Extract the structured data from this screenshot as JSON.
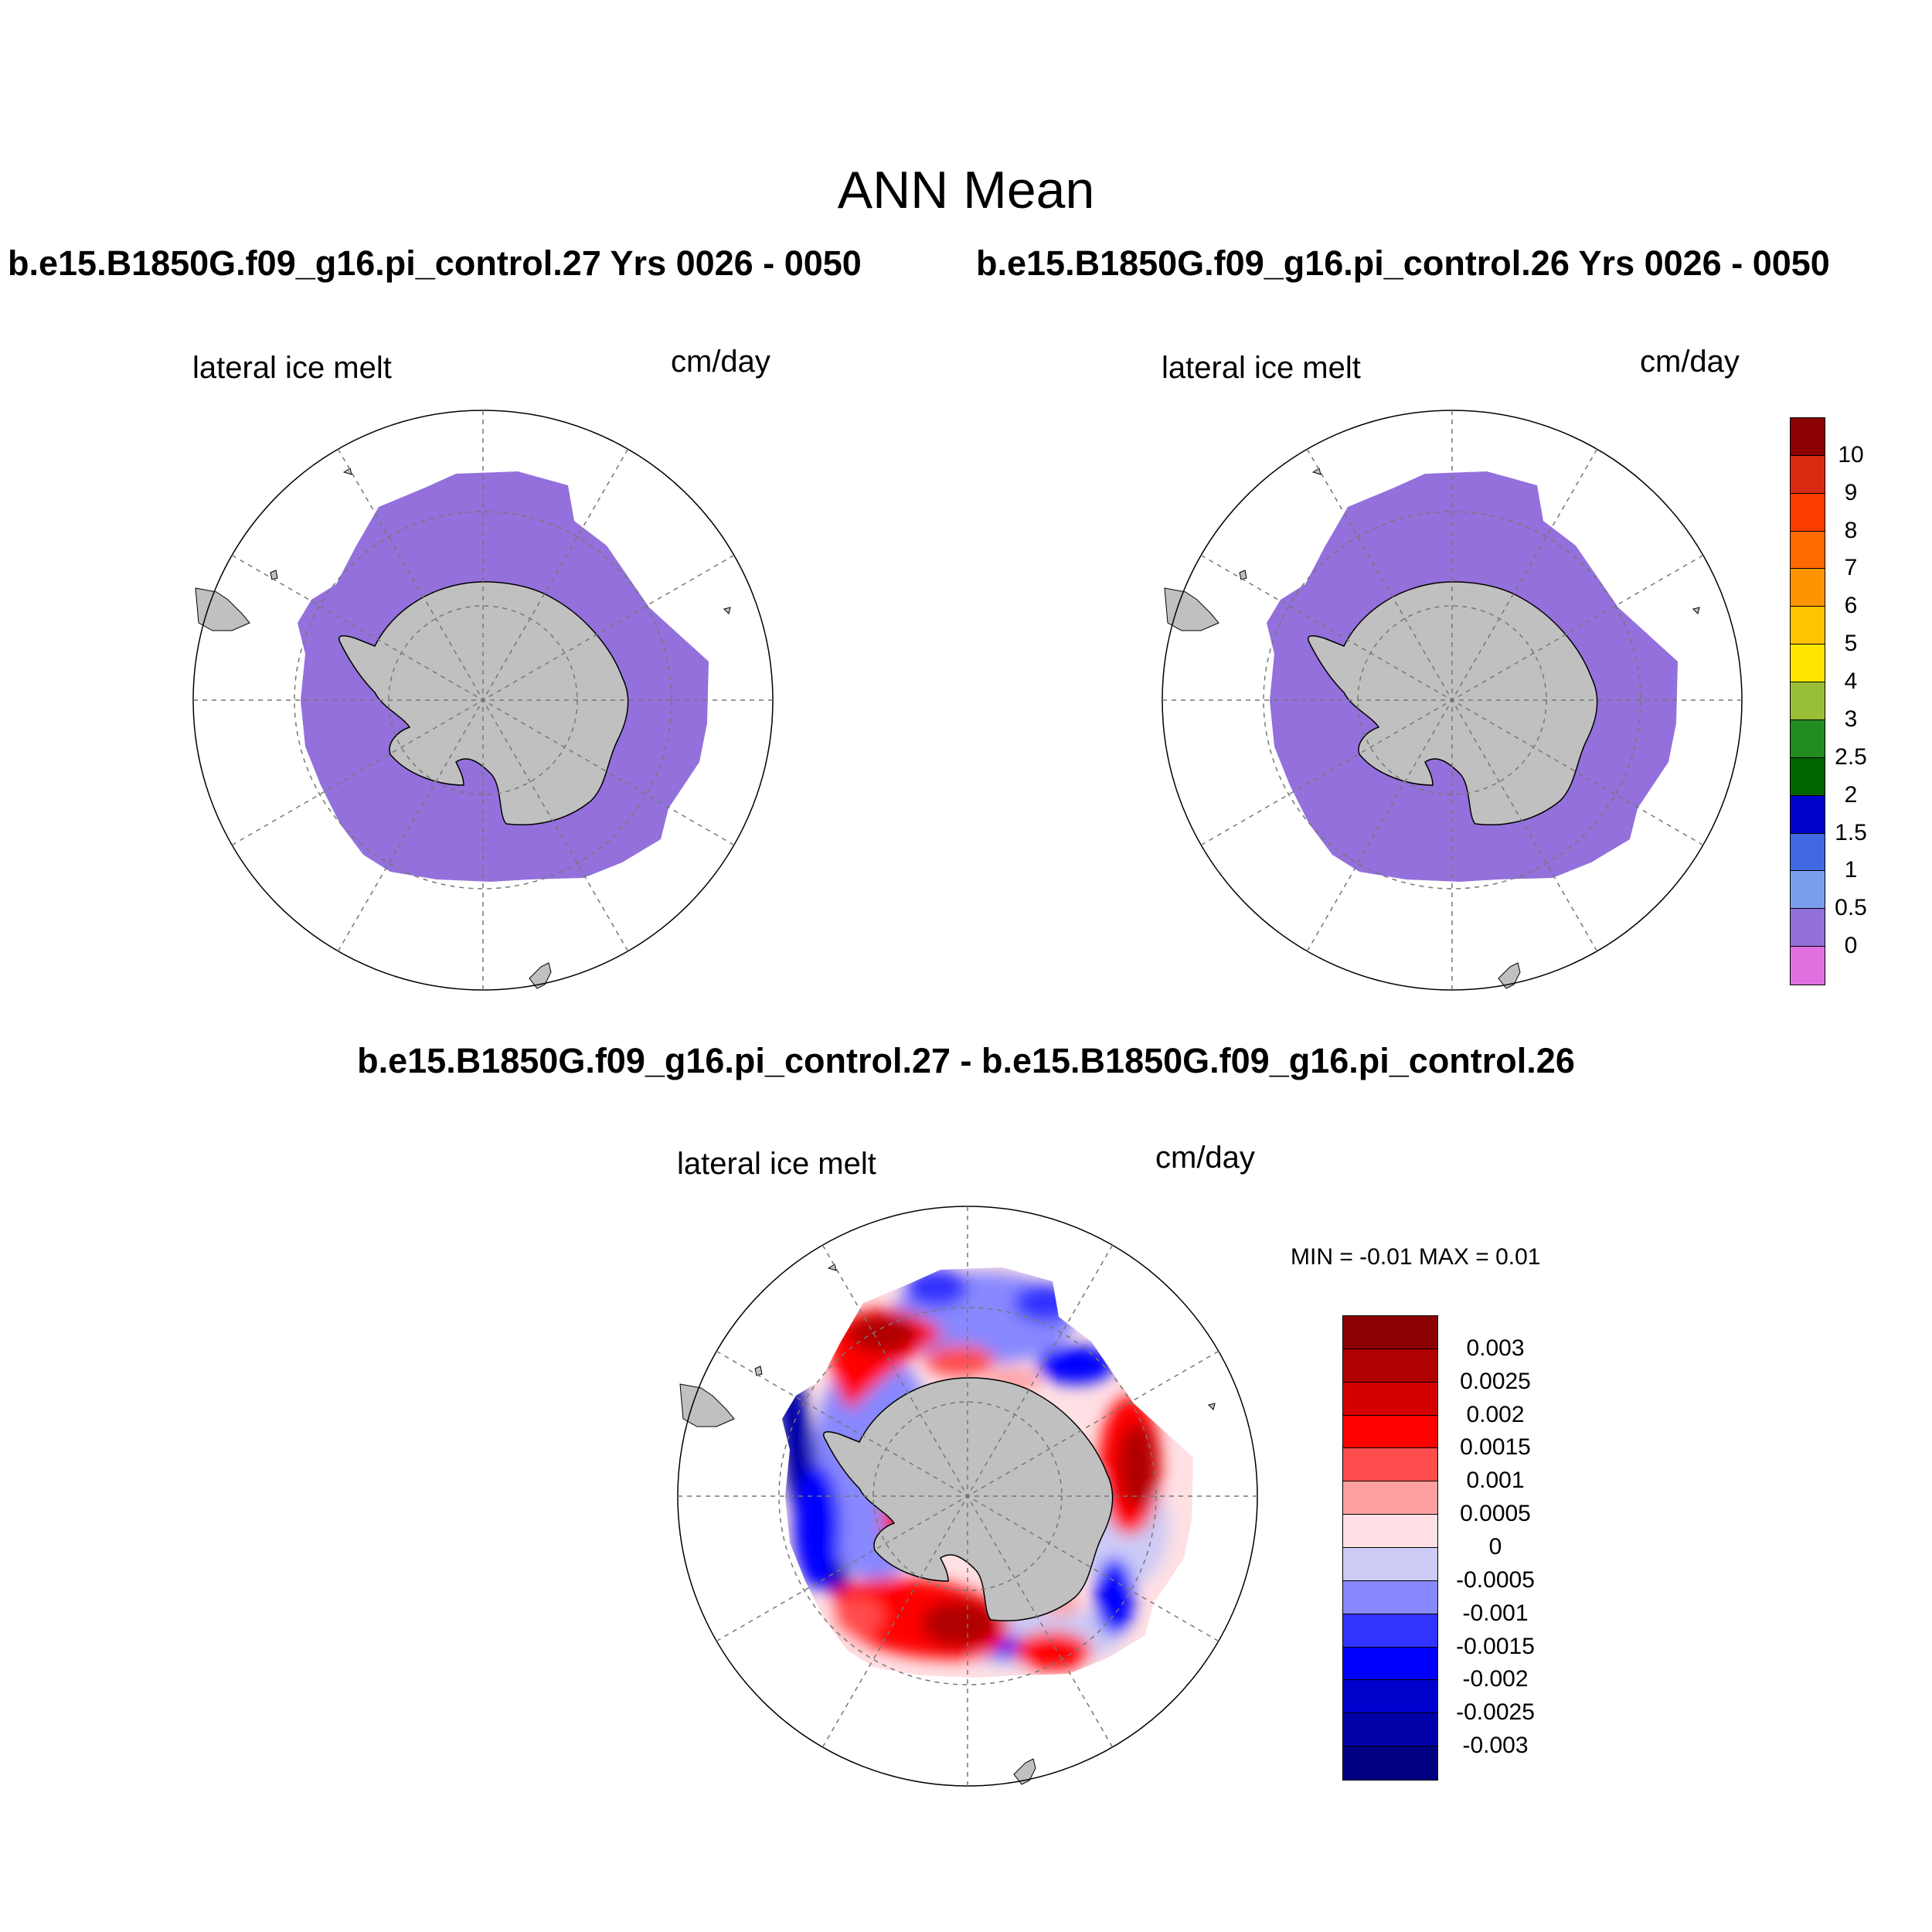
{
  "main_title": "ANN Mean",
  "case_titles": [
    "b.e15.B1850G.f09_g16.pi_control.27  Yrs 0026 - 0050",
    "b.e15.B1850G.f09_g16.pi_control.26  Yrs 0026 - 0050"
  ],
  "diff_title": "b.e15.B1850G.f09_g16.pi_control.27 - b.e15.B1850G.f09_g16.pi_control.26",
  "panels": [
    {
      "left_label": "lateral ice melt",
      "right_label": "cm/day"
    },
    {
      "left_label": "lateral ice melt",
      "right_label": "cm/day"
    },
    {
      "left_label": "lateral ice melt",
      "right_label": "cm/day"
    }
  ],
  "diff_stats": "MIN =  -0.01 MAX =   0.01",
  "colorbar_top": {
    "labels": [
      "10",
      "9",
      "8",
      "7",
      "6",
      "5",
      "4",
      "3",
      "2.5",
      "2",
      "1.5",
      "1",
      "0.5",
      "0"
    ],
    "colors": [
      "#8b0000",
      "#d92b12",
      "#ff3c00",
      "#ff6a00",
      "#ff9400",
      "#ffc400",
      "#ffe600",
      "#99bf38",
      "#228b22",
      "#006400",
      "#0000cd",
      "#4169e1",
      "#7a9ded",
      "#9370db",
      "#e070e0"
    ]
  },
  "colorbar_diff": {
    "labels": [
      "0.003",
      "0.0025",
      "0.002",
      "0.0015",
      "0.001",
      "0.0005",
      "0",
      "-0.0005",
      "-0.001",
      "-0.0015",
      "-0.002",
      "-0.0025",
      "-0.003"
    ],
    "colors": [
      "#8b0000",
      "#b00000",
      "#d40000",
      "#ff0000",
      "#ff4c4c",
      "#ffa0a0",
      "#ffe0e4",
      "#cccbf6",
      "#8888ff",
      "#3333ff",
      "#0000ff",
      "#0000cc",
      "#0000a8",
      "#000080"
    ]
  },
  "map_colors": {
    "ice_field": "#9370db",
    "land": "#c0c0c0",
    "diff_pos": "#ff0000",
    "diff_pos_dark": "#b00000",
    "diff_pos_light": "#ffa0a0",
    "diff_neg": "#0000ff",
    "diff_neg_dark": "#0000a8",
    "diff_neg_light": "#8888ff",
    "diff_zero": "#ffe0e4"
  }
}
